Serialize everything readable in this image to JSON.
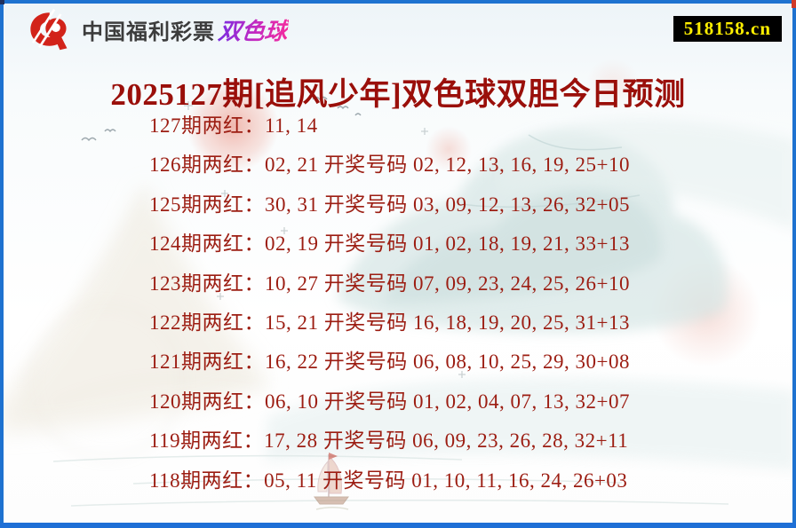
{
  "header": {
    "logo_icon": "china-welfare-lottery-logo",
    "brand_name": "中国福利彩票",
    "brand_product": "双色球",
    "badge_text": "518158.cn"
  },
  "title": "2025127期[追风少年]双色球双胆今日预测",
  "predictions": [
    {
      "period": "127",
      "two_reds": "11,14",
      "draw": "",
      "text": "127期两红：11, 14"
    },
    {
      "period": "126",
      "two_reds": "02,21",
      "draw": "02,12,13,16,19,25+10",
      "text": "126期两红：02, 21 开奖号码 02, 12, 13, 16, 19, 25+10"
    },
    {
      "period": "125",
      "two_reds": "30,31",
      "draw": "03,09,12,13,26,32+05",
      "text": "125期两红：30, 31 开奖号码 03, 09, 12, 13, 26, 32+05"
    },
    {
      "period": "124",
      "two_reds": "02,19",
      "draw": "01,02,18,19,21,33+13",
      "text": "124期两红：02, 19 开奖号码 01, 02, 18, 19, 21, 33+13"
    },
    {
      "period": "123",
      "two_reds": "10,27",
      "draw": "07,09,23,24,25,26+10",
      "text": "123期两红：10, 27 开奖号码 07, 09, 23, 24, 25, 26+10"
    },
    {
      "period": "122",
      "two_reds": "15,21",
      "draw": "16,18,19,20,25,31+13",
      "text": "122期两红：15, 21 开奖号码 16, 18, 19, 20, 25, 31+13"
    },
    {
      "period": "121",
      "two_reds": "16,22",
      "draw": "06,08,10,25,29,30+08",
      "text": "121期两红：16, 22 开奖号码 06, 08, 10, 25, 29, 30+08"
    },
    {
      "period": "120",
      "two_reds": "06,10",
      "draw": "01,02,04,07,13,32+07",
      "text": "120期两红：06, 10 开奖号码 01, 02, 04, 07, 13, 32+07"
    },
    {
      "period": "119",
      "two_reds": "17,28",
      "draw": "06,09,23,26,28,32+11",
      "text": "119期两红：17, 28 开奖号码 06, 09, 23, 26, 28, 32+11"
    },
    {
      "period": "118",
      "two_reds": "05,11",
      "draw": "01,10,11,16,24,26+03",
      "text": "118期两红：05, 11 开奖号码 01, 10, 11, 16, 24, 26+03"
    }
  ],
  "colors": {
    "frame_border": "#1e72d0",
    "top_left_notch": "#1e2f5c",
    "top_right_notch": "#d03a2a",
    "title_text": "#9a0f0a",
    "body_text": "#9c1d12",
    "badge_bg": "#000000",
    "badge_text": "#fdee00",
    "logo_red": "#d2231a",
    "product_gradient_start": "#7a2ce0",
    "product_gradient_end": "#f32b9e"
  },
  "background": {
    "style": "watercolor-landscape",
    "elements": [
      "teal-mountains",
      "beige-mountains",
      "pink-sun-wash",
      "sail-boat",
      "birds",
      "sparkles"
    ]
  }
}
